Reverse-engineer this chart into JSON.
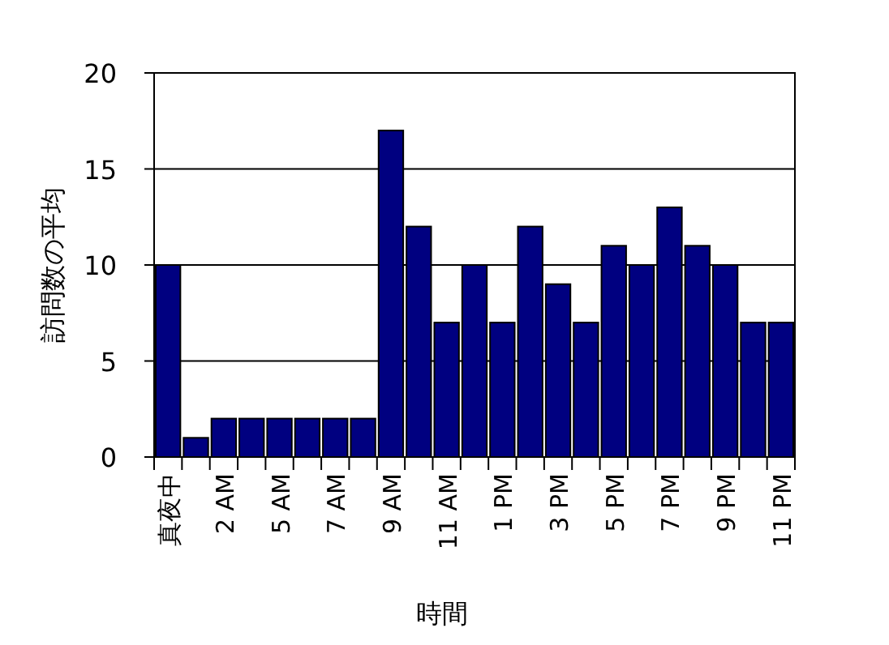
{
  "chart_data": {
    "type": "bar",
    "xlabel": "時間",
    "ylabel": "訪問数の平均",
    "categories": [
      "真夜中",
      null,
      "2 AM",
      null,
      "5 AM",
      null,
      "7 AM",
      null,
      "9 AM",
      null,
      "11 AM",
      null,
      "1 PM",
      null,
      "3 PM",
      null,
      "5 PM",
      null,
      "7 PM",
      null,
      "9 PM",
      null,
      "11 PM"
    ],
    "values": [
      10,
      1,
      2,
      2,
      2,
      2,
      2,
      2,
      17,
      12,
      7,
      10,
      7,
      12,
      9,
      7,
      11,
      10,
      13,
      11,
      10,
      7,
      7
    ],
    "color": "#000080",
    "ylim": [
      0,
      20
    ],
    "yticks": [
      0,
      5,
      10,
      15,
      20
    ],
    "grid": "y"
  }
}
